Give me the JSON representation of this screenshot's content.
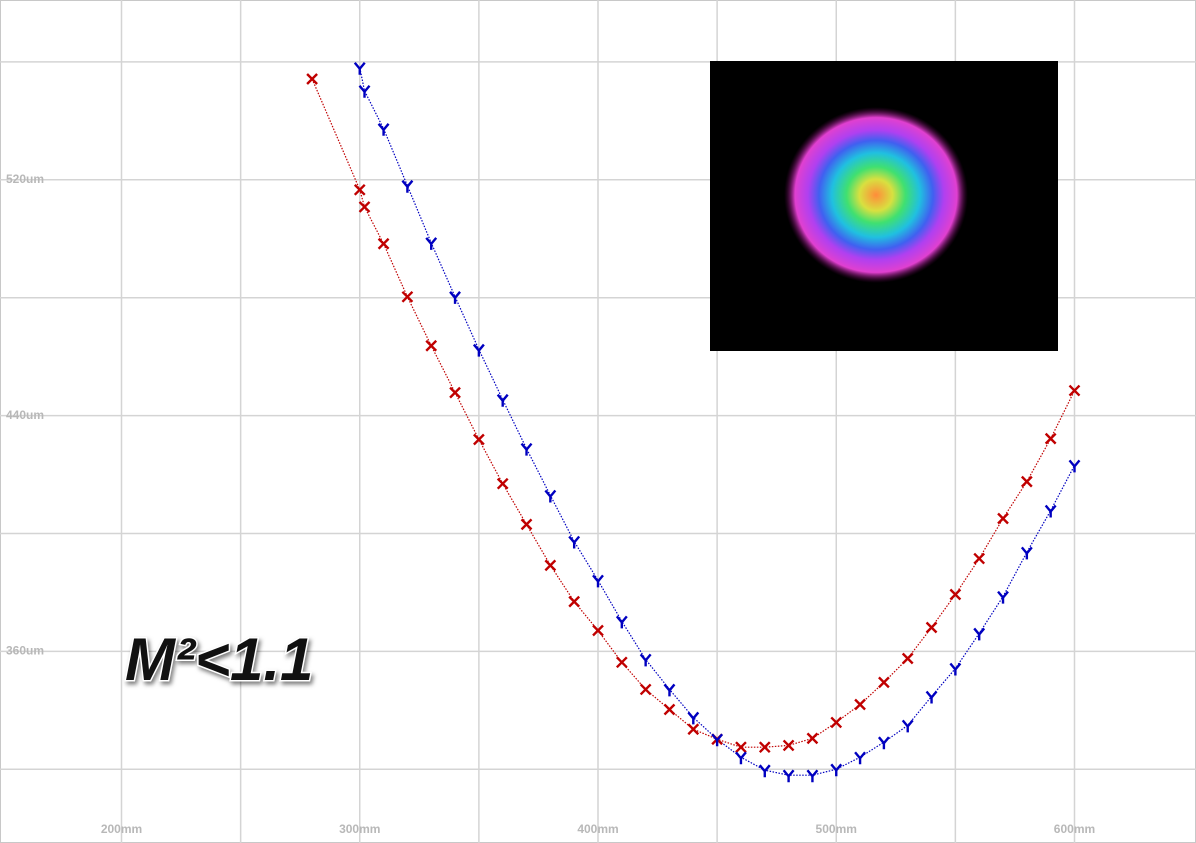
{
  "chart_data": {
    "type": "scatter",
    "annotation": "M²<1.1",
    "xlim": [
      149,
      651
    ],
    "ylim": [
      295,
      581
    ],
    "xticks": [
      {
        "value": 200,
        "label": "200mm"
      },
      {
        "value": 300,
        "label": "300mm"
      },
      {
        "value": 400,
        "label": "400mm"
      },
      {
        "value": 500,
        "label": "500mm"
      },
      {
        "value": 600,
        "label": "600mm"
      }
    ],
    "x_minor_grid": [
      250,
      350,
      450,
      550
    ],
    "yticks": [
      {
        "value": 360,
        "label": "360um"
      },
      {
        "value": 440,
        "label": "440um"
      },
      {
        "value": 520,
        "label": "520um"
      }
    ],
    "y_minor_grid": [
      320,
      400,
      480,
      560
    ],
    "grid": true,
    "series": [
      {
        "color": "#c00000",
        "marker": "x",
        "x": [
          280,
          300,
          302,
          310,
          320,
          330,
          340,
          350,
          360,
          370,
          380,
          390,
          400,
          410,
          420,
          430,
          440,
          450,
          460,
          470,
          480,
          490,
          500,
          510,
          520,
          530,
          540,
          550,
          560,
          570,
          580,
          590,
          600
        ],
        "values": [
          554.2,
          516.6,
          510.8,
          498.3,
          480.3,
          463.7,
          447.8,
          431.9,
          416.9,
          403.1,
          389.2,
          376.9,
          367.1,
          356.3,
          347.1,
          340.3,
          333.6,
          330.2,
          327.5,
          327.5,
          328.1,
          330.5,
          335.9,
          342.0,
          349.5,
          357.6,
          368.1,
          379.3,
          391.5,
          405.1,
          417.6,
          432.2,
          448.5
        ]
      },
      {
        "color": "#0000c0",
        "marker": "y",
        "x": [
          300,
          302,
          310,
          320,
          330,
          340,
          350,
          360,
          370,
          380,
          390,
          400,
          410,
          420,
          430,
          440,
          450,
          460,
          470,
          480,
          490,
          500,
          510,
          520,
          530,
          540,
          550,
          560,
          570,
          580,
          590,
          600
        ],
        "values": [
          558.0,
          550.2,
          537.3,
          518.0,
          498.6,
          480.3,
          462.4,
          445.4,
          428.8,
          412.9,
          397.3,
          384.1,
          370.2,
          357.3,
          347.1,
          337.6,
          330.2,
          324.1,
          319.7,
          318.0,
          318.0,
          320.0,
          324.1,
          329.2,
          334.9,
          344.7,
          354.2,
          366.1,
          378.6,
          393.6,
          407.8,
          423.1
        ]
      }
    ]
  }
}
